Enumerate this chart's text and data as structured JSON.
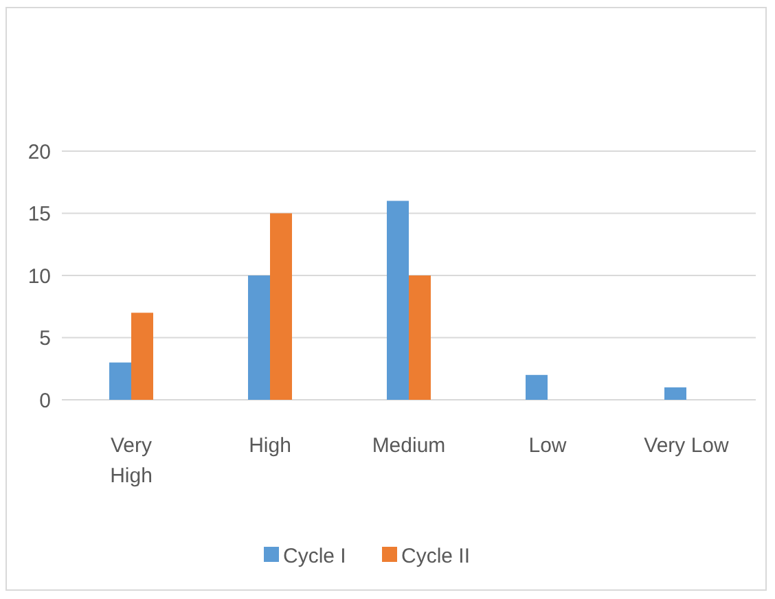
{
  "chart_data": {
    "type": "bar",
    "categories": [
      "Very High",
      "High",
      "Medium",
      "Low",
      "Very Low"
    ],
    "series": [
      {
        "name": "Cycle I",
        "color": "#5b9bd5",
        "values": [
          3,
          10,
          16,
          2,
          1
        ]
      },
      {
        "name": "Cycle II",
        "color": "#ed7d31",
        "values": [
          7,
          15,
          10,
          0,
          0
        ]
      }
    ],
    "ylim": [
      0,
      20
    ],
    "yticks": [
      0,
      5,
      10,
      15,
      20
    ],
    "grid": "y",
    "legend": "bottom"
  }
}
